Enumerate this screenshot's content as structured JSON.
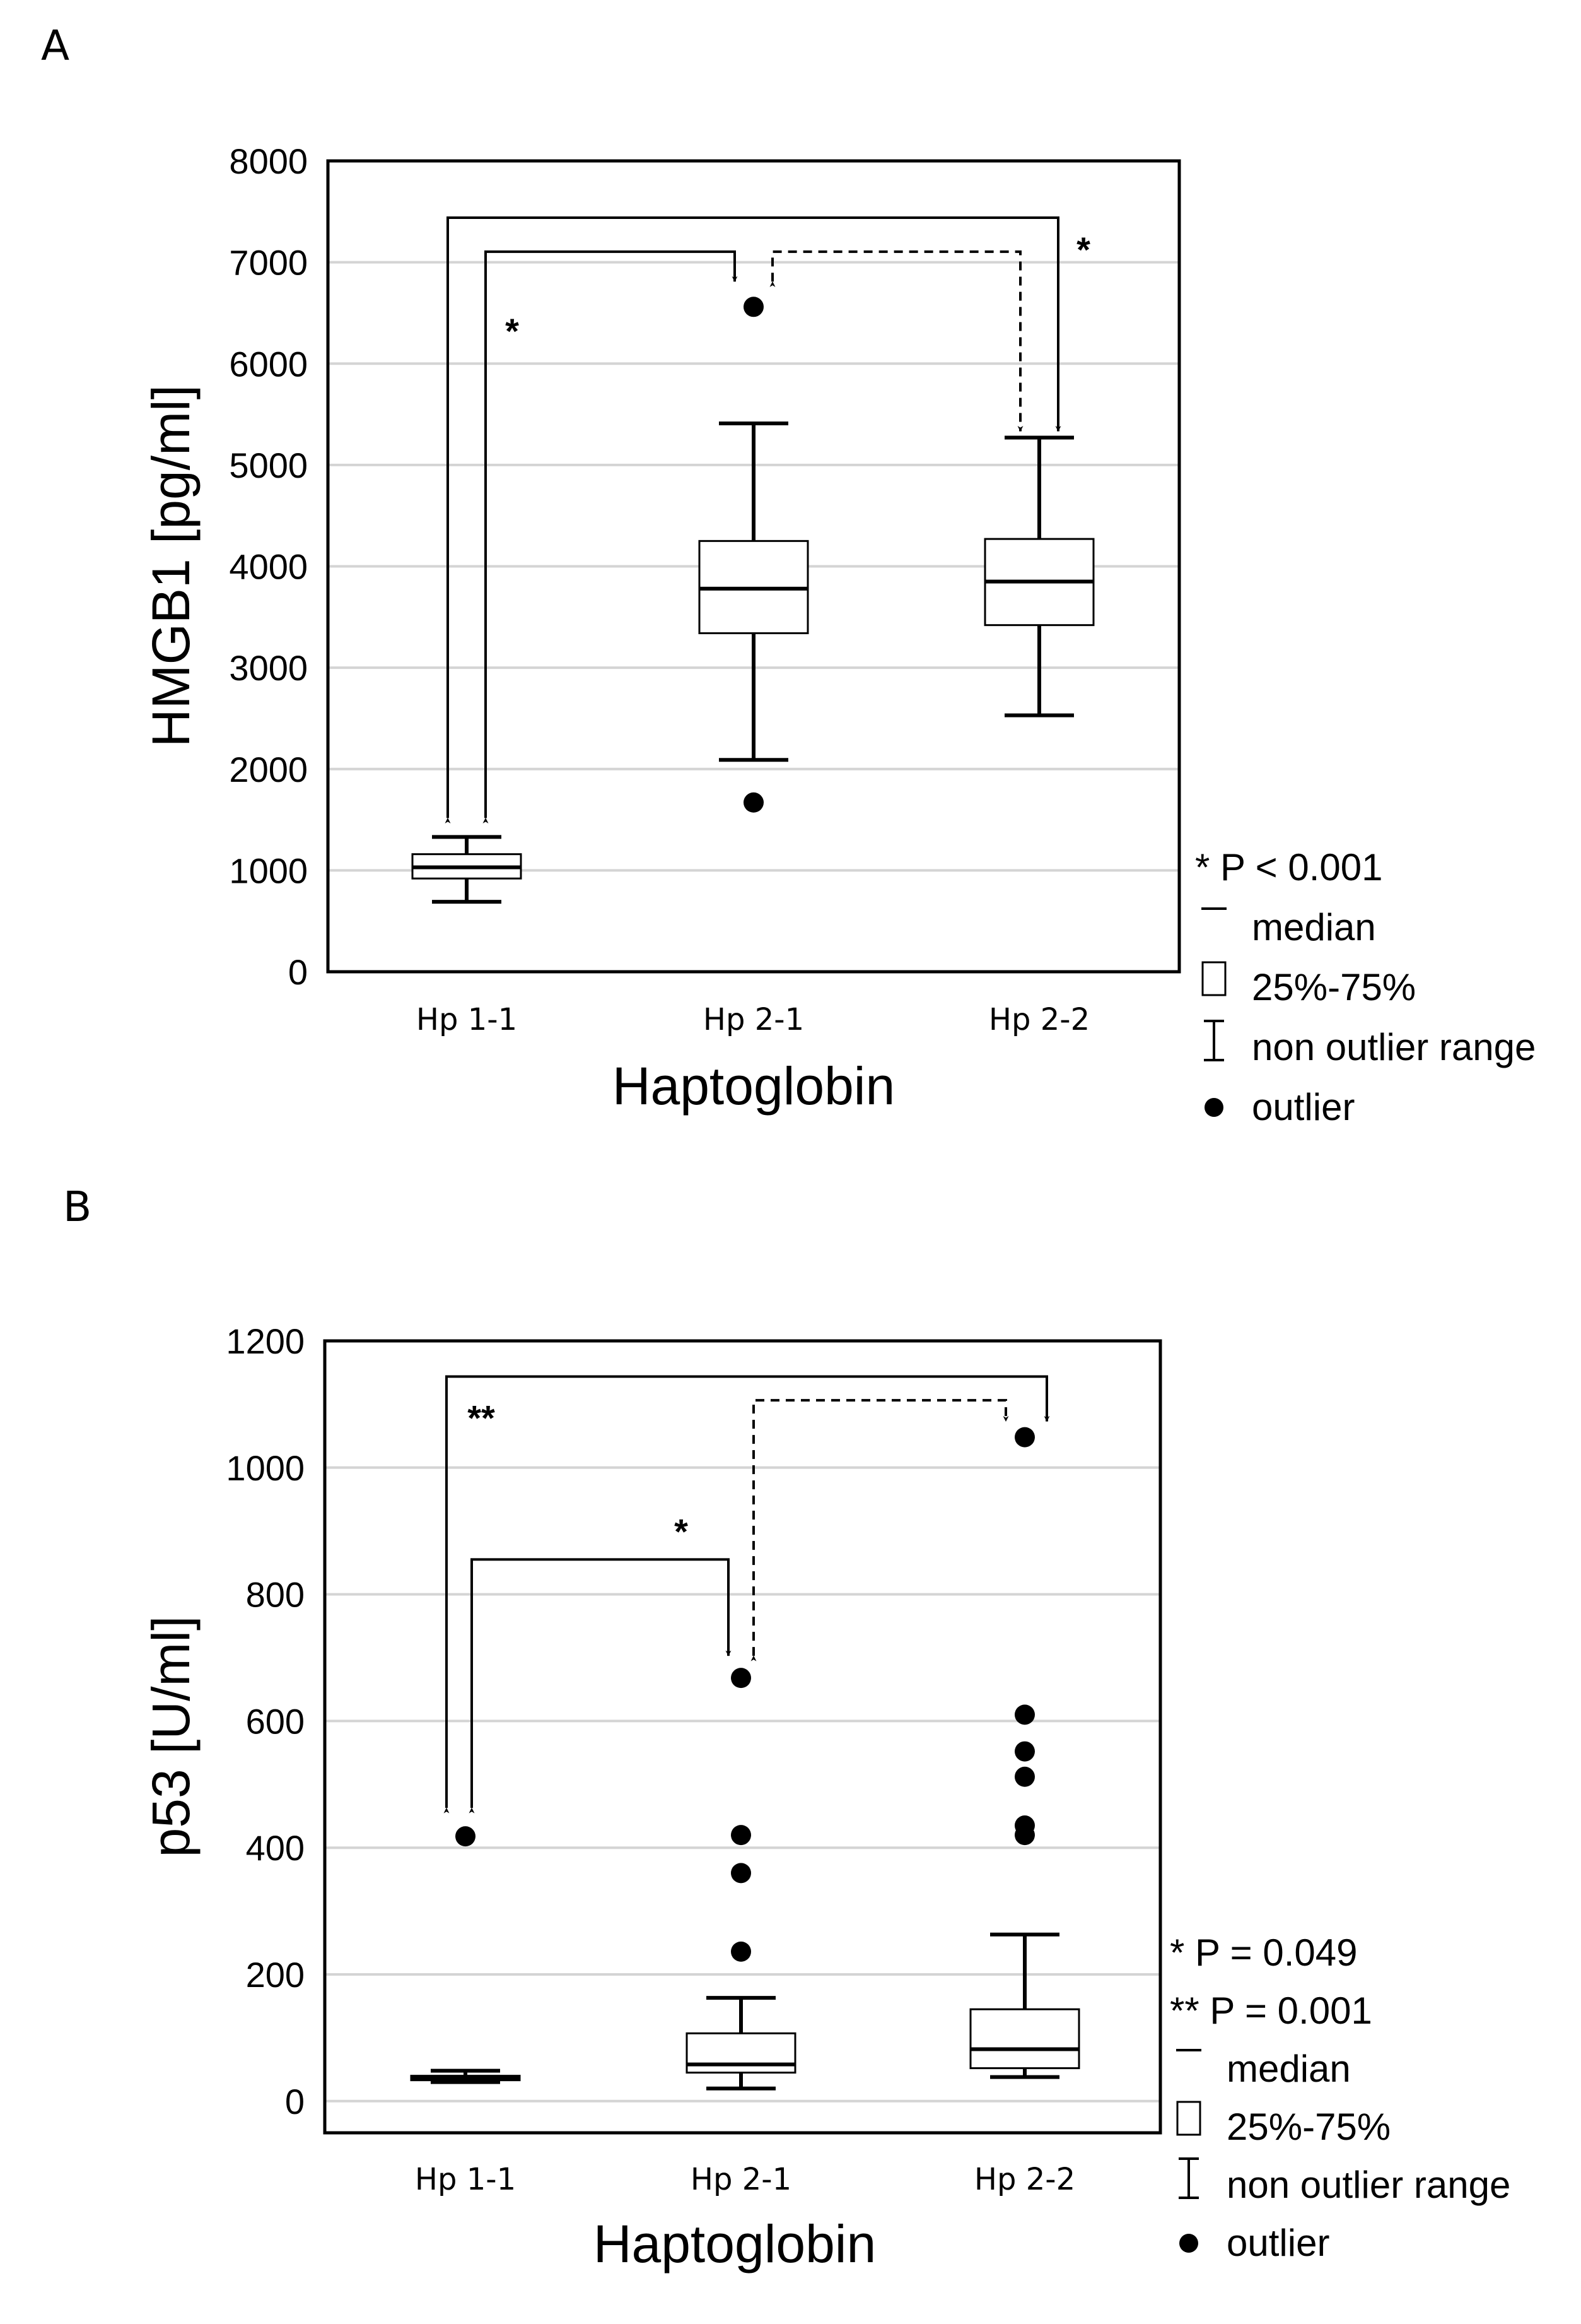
{
  "figure": {
    "panels": [
      {
        "label": "A",
        "significance": [
          {
            "from": 0,
            "to": 1,
            "dashed": false,
            "label": "*"
          },
          {
            "from": 0,
            "to": 2,
            "dashed": false,
            "label": "*"
          },
          {
            "from": 1,
            "to": 2,
            "dashed": true,
            "label": ""
          }
        ],
        "legend": [
          {
            "symbol": "star",
            "text": "* P < 0.001"
          },
          {
            "symbol": "median",
            "text": "median"
          },
          {
            "symbol": "box",
            "text": "25%-75%"
          },
          {
            "symbol": "whisker",
            "text": "non outlier range"
          },
          {
            "symbol": "outlier",
            "text": "outlier"
          }
        ]
      },
      {
        "label": "B",
        "significance": [
          {
            "from": 0,
            "to": 1,
            "dashed": false,
            "label": "*"
          },
          {
            "from": 0,
            "to": 2,
            "dashed": false,
            "label": "**"
          },
          {
            "from": 1,
            "to": 2,
            "dashed": true,
            "label": ""
          }
        ],
        "legend": [
          {
            "symbol": "star",
            "text": "*  P = 0.049"
          },
          {
            "symbol": "star",
            "text": "** P = 0.001"
          },
          {
            "symbol": "median",
            "text": "median"
          },
          {
            "symbol": "box",
            "text": "25%-75%"
          },
          {
            "symbol": "whisker",
            "text": "non outlier range"
          },
          {
            "symbol": "outlier",
            "text": "outlier"
          }
        ]
      }
    ]
  },
  "chart_data": [
    {
      "type": "box",
      "title": "",
      "xlabel": "Haptoglobin",
      "ylabel": "HMGB1 [pg/ml]",
      "ylim": [
        0,
        8000
      ],
      "yticks": [
        0,
        1000,
        2000,
        3000,
        4000,
        5000,
        6000,
        7000,
        8000
      ],
      "grid": true,
      "categories": [
        "Hp 1-1",
        "Hp 2-1",
        "Hp 2-2"
      ],
      "boxes": [
        {
          "whisker_low": 690,
          "q1": 920,
          "median": 1030,
          "q3": 1160,
          "whisker_high": 1330,
          "outliers": []
        },
        {
          "whisker_low": 2090,
          "q1": 3340,
          "median": 3780,
          "q3": 4250,
          "whisker_high": 5410,
          "outliers": [
            1670,
            6560
          ]
        },
        {
          "whisker_low": 2530,
          "q1": 3420,
          "median": 3850,
          "q3": 4270,
          "whisker_high": 5270,
          "outliers": []
        }
      ]
    },
    {
      "type": "box",
      "title": "",
      "xlabel": "Haptoglobin",
      "ylabel": "p53 [U/ml]",
      "ylim": [
        -50,
        1200
      ],
      "yticks": [
        0,
        200,
        400,
        600,
        800,
        1000,
        1200
      ],
      "grid": true,
      "categories": [
        "Hp 1-1",
        "Hp 2-1",
        "Hp 2-2"
      ],
      "boxes": [
        {
          "whisker_low": 30,
          "q1": 33,
          "median": 37,
          "q3": 40,
          "whisker_high": 48,
          "outliers": [
            418
          ]
        },
        {
          "whisker_low": 20,
          "q1": 45,
          "median": 58,
          "q3": 107,
          "whisker_high": 163,
          "outliers": [
            236,
            360,
            420,
            668
          ]
        },
        {
          "whisker_low": 38,
          "q1": 52,
          "median": 82,
          "q3": 145,
          "whisker_high": 263,
          "outliers": [
            420,
            435,
            512,
            552,
            610,
            1048
          ]
        }
      ]
    }
  ]
}
